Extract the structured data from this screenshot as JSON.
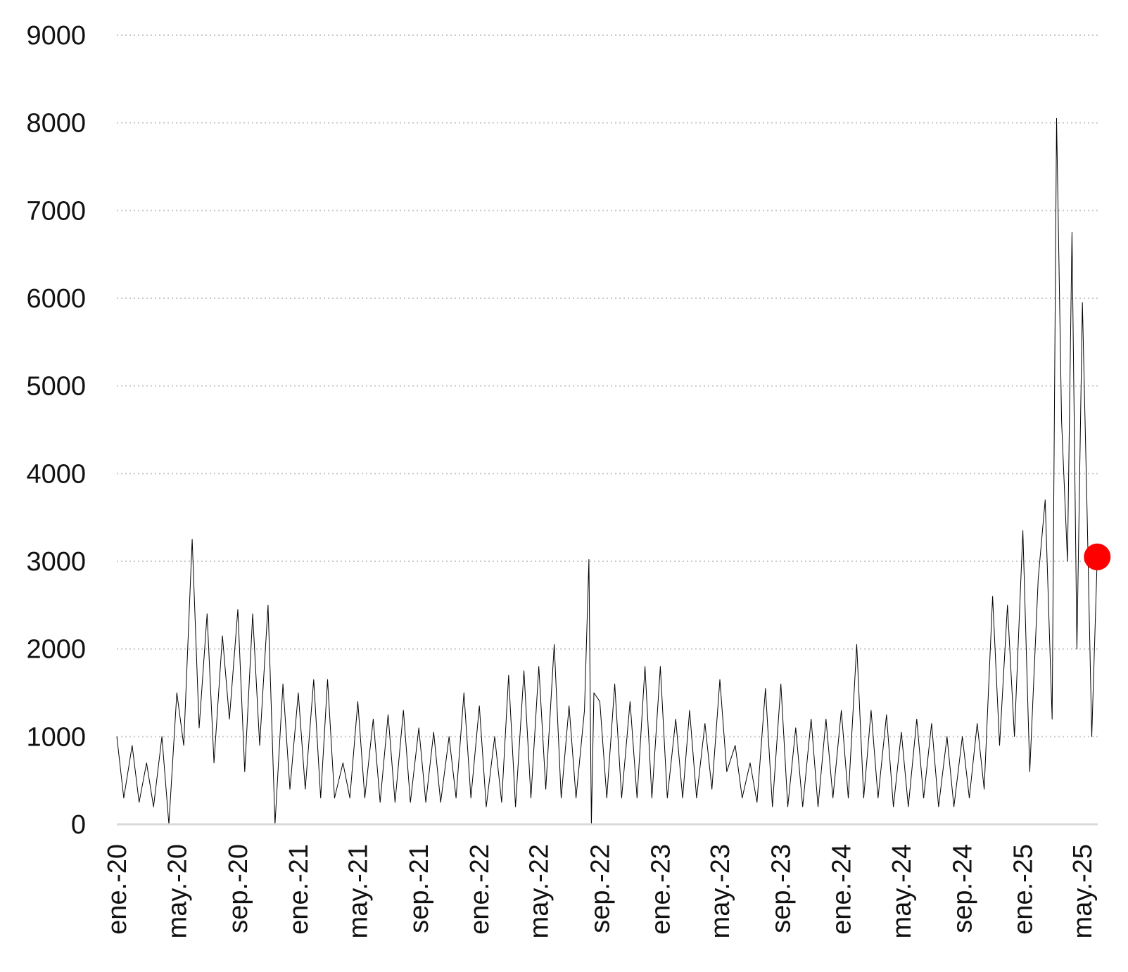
{
  "chart_data": {
    "type": "line",
    "title": "",
    "xlabel": "",
    "ylabel": "",
    "x_range": [
      "2020-01-01",
      "2025-06-01"
    ],
    "ylim": [
      0,
      9000
    ],
    "y_ticks": [
      "0",
      "1000",
      "2000",
      "3000",
      "4000",
      "5000",
      "6000",
      "7000",
      "8000",
      "9000"
    ],
    "x_tick_labels": [
      "ene.-20",
      "may.-20",
      "sep.-20",
      "ene.-21",
      "may.-21",
      "sep.-21",
      "ene.-22",
      "may.-22",
      "sep.-22",
      "ene.-23",
      "may.-23",
      "sep.-23",
      "ene.-24",
      "may.-24",
      "sep.-24",
      "ene.-25",
      "may.-25"
    ],
    "x_tick_dates": [
      "2020-01-01",
      "2020-05-01",
      "2020-09-01",
      "2021-01-01",
      "2021-05-01",
      "2021-09-01",
      "2022-01-01",
      "2022-05-01",
      "2022-09-01",
      "2023-01-01",
      "2023-05-01",
      "2023-09-01",
      "2024-01-01",
      "2024-05-01",
      "2024-09-01",
      "2025-01-01",
      "2025-05-01"
    ],
    "grid": "horizontal dotted",
    "legend": "none",
    "line_color": "#000000",
    "marker_color": "#ff0000",
    "series": [
      {
        "values_description_free": true,
        "x": [
          "2020-01-01",
          "2020-01-15",
          "2020-02-01",
          "2020-02-15",
          "2020-03-01",
          "2020-03-15",
          "2020-04-01",
          "2020-04-15",
          "2020-05-01",
          "2020-05-15",
          "2020-06-01",
          "2020-06-15",
          "2020-07-01",
          "2020-07-15",
          "2020-08-01",
          "2020-08-15",
          "2020-09-01",
          "2020-09-15",
          "2020-10-01",
          "2020-10-15",
          "2020-11-01",
          "2020-11-15",
          "2020-12-01",
          "2020-12-15",
          "2021-01-01",
          "2021-01-15",
          "2021-02-01",
          "2021-02-15",
          "2021-03-01",
          "2021-03-15",
          "2021-04-01",
          "2021-04-15",
          "2021-05-01",
          "2021-05-15",
          "2021-06-01",
          "2021-06-15",
          "2021-07-01",
          "2021-07-15",
          "2021-08-01",
          "2021-08-15",
          "2021-09-01",
          "2021-09-15",
          "2021-10-01",
          "2021-10-15",
          "2021-11-01",
          "2021-11-15",
          "2021-12-01",
          "2021-12-15",
          "2022-01-01",
          "2022-01-15",
          "2022-02-01",
          "2022-02-15",
          "2022-03-01",
          "2022-03-15",
          "2022-04-01",
          "2022-04-15",
          "2022-05-01",
          "2022-05-15",
          "2022-06-01",
          "2022-06-15",
          "2022-07-01",
          "2022-07-15",
          "2022-08-01",
          "2022-08-10",
          "2022-08-15",
          "2022-08-20",
          "2022-09-01",
          "2022-09-15",
          "2022-10-01",
          "2022-10-15",
          "2022-11-01",
          "2022-11-15",
          "2022-12-01",
          "2022-12-15",
          "2023-01-01",
          "2023-01-15",
          "2023-02-01",
          "2023-02-15",
          "2023-03-01",
          "2023-03-15",
          "2023-04-01",
          "2023-04-15",
          "2023-05-01",
          "2023-05-15",
          "2023-06-01",
          "2023-06-15",
          "2023-07-01",
          "2023-07-15",
          "2023-08-01",
          "2023-08-15",
          "2023-09-01",
          "2023-09-15",
          "2023-10-01",
          "2023-10-15",
          "2023-11-01",
          "2023-11-15",
          "2023-12-01",
          "2023-12-15",
          "2024-01-01",
          "2024-01-15",
          "2024-02-01",
          "2024-02-15",
          "2024-03-01",
          "2024-03-15",
          "2024-04-01",
          "2024-04-15",
          "2024-05-01",
          "2024-05-15",
          "2024-06-01",
          "2024-06-15",
          "2024-07-01",
          "2024-07-15",
          "2024-08-01",
          "2024-08-15",
          "2024-09-01",
          "2024-09-15",
          "2024-10-01",
          "2024-10-15",
          "2024-11-01",
          "2024-11-15",
          "2024-12-01",
          "2024-12-15",
          "2025-01-01",
          "2025-01-15",
          "2025-02-01",
          "2025-02-15",
          "2025-03-01",
          "2025-03-10",
          "2025-03-20",
          "2025-04-01",
          "2025-04-10",
          "2025-04-20",
          "2025-05-01",
          "2025-05-10",
          "2025-05-20",
          "2025-05-31"
        ],
        "values": [
          1000,
          300,
          900,
          250,
          700,
          200,
          1000,
          0,
          1500,
          900,
          3250,
          1100,
          2400,
          700,
          2150,
          1200,
          2450,
          600,
          2400,
          900,
          2500,
          0,
          1600,
          400,
          1500,
          400,
          1650,
          300,
          1650,
          300,
          700,
          300,
          1400,
          300,
          1200,
          250,
          1250,
          250,
          1300,
          250,
          1100,
          250,
          1050,
          250,
          1000,
          300,
          1500,
          300,
          1350,
          200,
          1000,
          250,
          1700,
          200,
          1750,
          300,
          1800,
          400,
          2050,
          300,
          1350,
          300,
          1300,
          3020,
          0,
          1500,
          1400,
          300,
          1600,
          300,
          1400,
          300,
          1800,
          300,
          1800,
          300,
          1200,
          300,
          1300,
          300,
          1150,
          400,
          1650,
          600,
          900,
          300,
          700,
          250,
          1550,
          200,
          1600,
          200,
          1100,
          200,
          1200,
          200,
          1200,
          300,
          1300,
          300,
          2050,
          300,
          1300,
          300,
          1250,
          200,
          1050,
          200,
          1200,
          300,
          1150,
          200,
          1000,
          200,
          1000,
          300,
          1150,
          400,
          2600,
          900,
          2500,
          1000,
          3350,
          600,
          2800,
          3700,
          1200,
          8050,
          4600,
          3000,
          6750,
          2000,
          5950,
          3700,
          1000,
          3050
        ]
      }
    ],
    "highlight_point": {
      "x": "2025-05-31",
      "y": 3050
    }
  }
}
